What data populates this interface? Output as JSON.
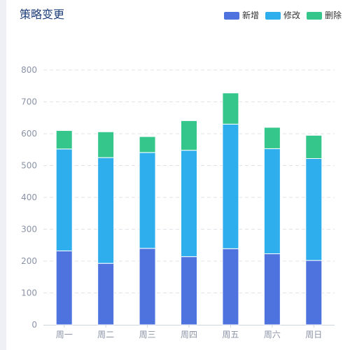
{
  "chart_data": {
    "type": "bar",
    "stacked": true,
    "title": "策略变更",
    "categories": [
      "周一",
      "周二",
      "周三",
      "周四",
      "周五",
      "周六",
      "周日"
    ],
    "series": [
      {
        "name": "新增",
        "color": "#4e73df",
        "values": [
          232,
          193,
          240,
          214,
          239,
          223,
          202
        ]
      },
      {
        "name": "修改",
        "color": "#2eaeec",
        "values": [
          320,
          332,
          301,
          334,
          391,
          330,
          320
        ]
      },
      {
        "name": "删除",
        "color": "#34c68a",
        "values": [
          58,
          81,
          50,
          93,
          98,
          67,
          73
        ]
      }
    ],
    "yticks": [
      "0",
      "100",
      "200",
      "300",
      "400",
      "500",
      "600",
      "700",
      "800"
    ],
    "ylim": [
      0,
      800
    ],
    "grid": true,
    "legend_position": "top-right"
  }
}
